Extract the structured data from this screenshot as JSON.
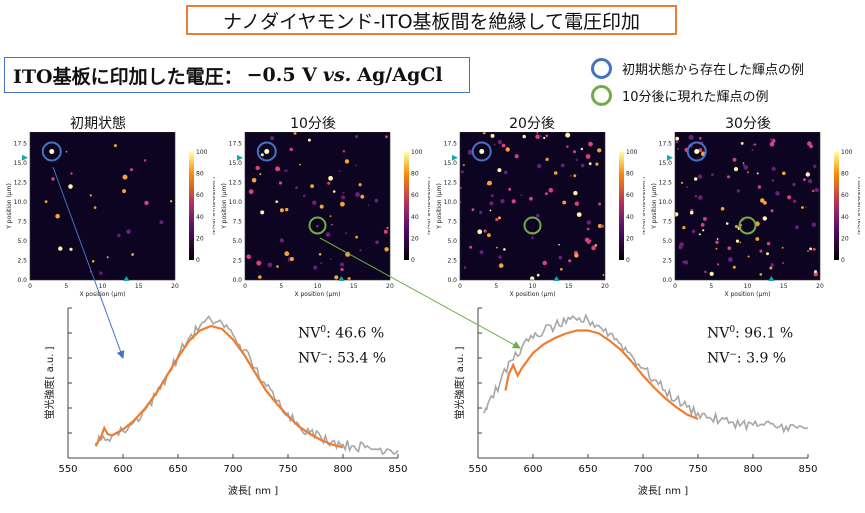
{
  "header": {
    "title": "ナノダイヤモンド-ITO基板間を絶縁して電圧印加"
  },
  "condition": {
    "prefix": "ITO基板に印加した電圧：",
    "value": "−0.5 V",
    "vs": "vs.",
    "ref": "Ag/AgCl"
  },
  "legend": {
    "items": [
      {
        "label": "初期状態から存在した輝点の例",
        "color": "#4472c4"
      },
      {
        "label": "10分後に現れた輝点の例",
        "color": "#70ad47"
      }
    ]
  },
  "panels": [
    {
      "title": "初期状態",
      "marker": "blue",
      "marker_x": 3,
      "marker_y": 16.5,
      "density": 0.35
    },
    {
      "title": "10分後",
      "marker": "both",
      "marker_x": 3,
      "marker_y": 16.5,
      "green_x": 10,
      "green_y": 7,
      "density": 1.0
    },
    {
      "title": "20分後",
      "marker": "both",
      "marker_x": 3,
      "marker_y": 16.5,
      "green_x": 10,
      "green_y": 7,
      "density": 1.3
    },
    {
      "title": "30分後",
      "marker": "both",
      "marker_x": 3,
      "marker_y": 16.5,
      "green_x": 10,
      "green_y": 7,
      "density": 1.5
    }
  ],
  "map_axes": {
    "xlabel": "X position (μm)",
    "ylabel": "Y position (μm)",
    "cbar_label": "Fluorescence (kc/s)",
    "x_ticks": [
      "0",
      "5",
      "10",
      "15",
      "20"
    ],
    "y_ticks": [
      "0.0",
      "2.5",
      "5.0",
      "7.5",
      "10.0",
      "12.5",
      "15.0",
      "17.5"
    ],
    "cbar_ticks": [
      "0",
      "20",
      "40",
      "60",
      "80",
      "100"
    ]
  },
  "spectra": {
    "xlabel": "波長[ nm ]",
    "ylabel": "蛍光強度[ a.u. ]",
    "x_ticks": [
      "550",
      "600",
      "650",
      "700",
      "750",
      "800",
      "850"
    ],
    "left": {
      "nv0_label": "NV",
      "nv0_sup": "0",
      "nv0_value": ": 46.6 %",
      "nvm_label": "NV",
      "nvm_sup": "−",
      "nvm_value": ": 53.4 %"
    },
    "right": {
      "nv0_label": "NV",
      "nv0_sup": "0",
      "nv0_value": ": 96.1 %",
      "nvm_label": "NV",
      "nvm_sup": "−",
      "nvm_value": ": 3.9 %"
    }
  },
  "chart_data": [
    {
      "type": "line",
      "xlabel": "波長[ nm ]",
      "ylabel": "蛍光強度[ a.u. ]",
      "xlim": [
        550,
        850
      ],
      "series": [
        {
          "color": "#a6a6a6",
          "x": [
            575,
            580,
            590,
            600,
            610,
            620,
            630,
            640,
            650,
            660,
            670,
            680,
            690,
            700,
            710,
            720,
            730,
            740,
            750,
            760,
            770,
            780,
            790,
            800,
            810,
            820,
            830,
            840,
            850
          ],
          "y": [
            0.1,
            0.12,
            0.15,
            0.18,
            0.24,
            0.32,
            0.42,
            0.55,
            0.68,
            0.8,
            0.88,
            0.92,
            0.9,
            0.82,
            0.72,
            0.6,
            0.48,
            0.38,
            0.3,
            0.22,
            0.17,
            0.14,
            0.11,
            0.09,
            0.08,
            0.07,
            0.06,
            0.06,
            0.05
          ]
        },
        {
          "color": "#ed7d31",
          "x": [
            575,
            580,
            583,
            586,
            590,
            600,
            610,
            620,
            630,
            640,
            650,
            660,
            670,
            680,
            690,
            700,
            710,
            720,
            730,
            740,
            750,
            760,
            770,
            780,
            790,
            800
          ],
          "y": [
            0.08,
            0.14,
            0.2,
            0.16,
            0.15,
            0.19,
            0.25,
            0.33,
            0.43,
            0.55,
            0.67,
            0.78,
            0.85,
            0.88,
            0.86,
            0.79,
            0.69,
            0.57,
            0.45,
            0.36,
            0.28,
            0.21,
            0.16,
            0.12,
            0.09,
            0.07
          ]
        }
      ]
    },
    {
      "type": "line",
      "xlabel": "波長[ nm ]",
      "ylabel": "蛍光強度[ a.u. ]",
      "xlim": [
        550,
        850
      ],
      "series": [
        {
          "color": "#a6a6a6",
          "x": [
            555,
            560,
            570,
            580,
            590,
            600,
            610,
            620,
            630,
            640,
            650,
            660,
            670,
            680,
            690,
            700,
            710,
            720,
            730,
            740,
            750,
            760,
            770,
            780,
            790,
            800,
            810,
            820,
            830,
            840,
            850
          ],
          "y": [
            0.3,
            0.38,
            0.5,
            0.65,
            0.74,
            0.8,
            0.85,
            0.88,
            0.9,
            0.92,
            0.92,
            0.88,
            0.83,
            0.76,
            0.68,
            0.6,
            0.52,
            0.45,
            0.39,
            0.34,
            0.3,
            0.27,
            0.25,
            0.24,
            0.23,
            0.22,
            0.22,
            0.21,
            0.21,
            0.2,
            0.2
          ]
        },
        {
          "color": "#ed7d31",
          "x": [
            575,
            578,
            582,
            586,
            590,
            600,
            610,
            620,
            630,
            640,
            650,
            660,
            670,
            680,
            690,
            700,
            710,
            720,
            730,
            740,
            750
          ],
          "y": [
            0.45,
            0.56,
            0.62,
            0.55,
            0.6,
            0.7,
            0.76,
            0.8,
            0.83,
            0.85,
            0.85,
            0.83,
            0.78,
            0.72,
            0.64,
            0.55,
            0.47,
            0.4,
            0.34,
            0.29,
            0.26
          ]
        }
      ]
    }
  ]
}
